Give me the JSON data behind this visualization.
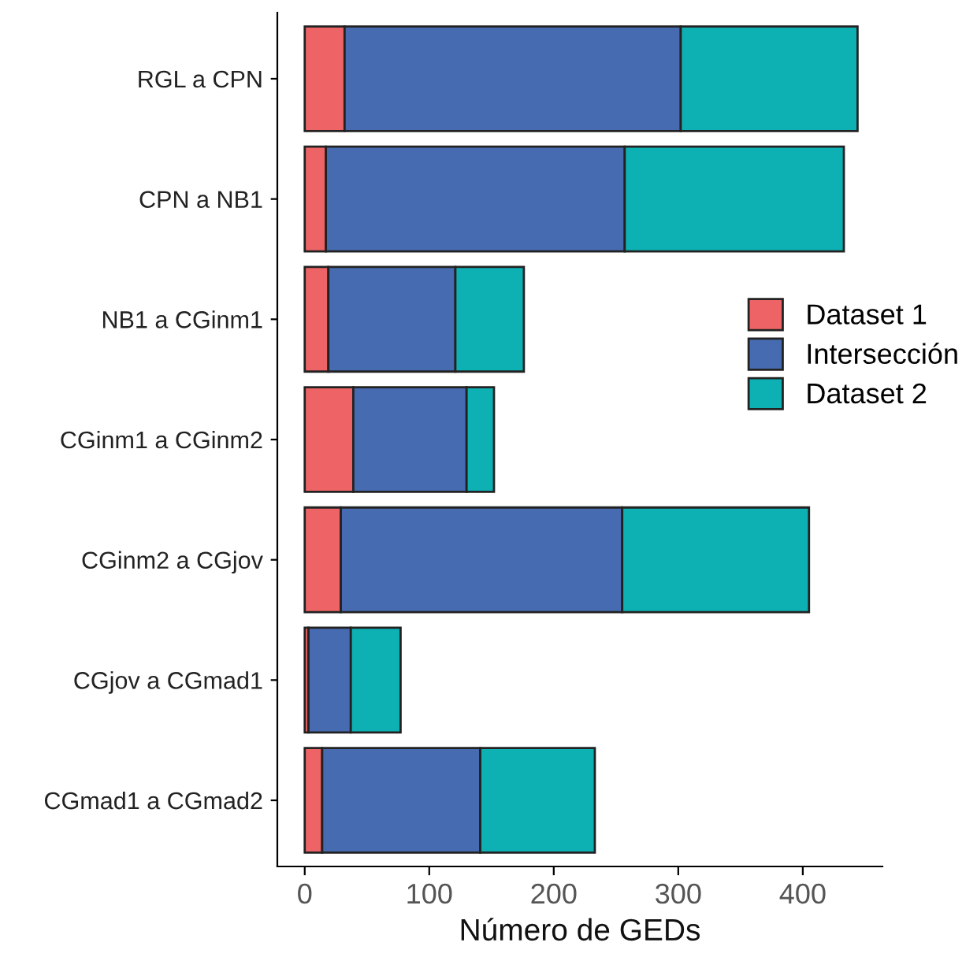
{
  "chart_data": {
    "type": "bar",
    "orientation": "horizontal",
    "stacked": true,
    "categories": [
      "RGL a CPN",
      "CPN a NB1",
      "NB1 a CGinm1",
      "CGinm1 a CGinm2",
      "CGinm2 a CGjov",
      "CGjov a CGmad1",
      "CGmad1 a CGmad2"
    ],
    "series": [
      {
        "name": "Dataset 1",
        "color": "#ee6466",
        "values": [
          32,
          17,
          19,
          39,
          29,
          3,
          14
        ]
      },
      {
        "name": "Intersección",
        "color": "#466bb0",
        "values": [
          270,
          240,
          102,
          91,
          226,
          34,
          127
        ]
      },
      {
        "name": "Dataset 2",
        "color": "#0db1b4",
        "values": [
          142,
          176,
          55,
          22,
          150,
          40,
          92
        ]
      }
    ],
    "xlabel": "Número de GEDs",
    "xlim": [
      -22,
      464
    ],
    "xticks": [
      0,
      100,
      200,
      300,
      400
    ],
    "grid": false,
    "legend": "right"
  }
}
